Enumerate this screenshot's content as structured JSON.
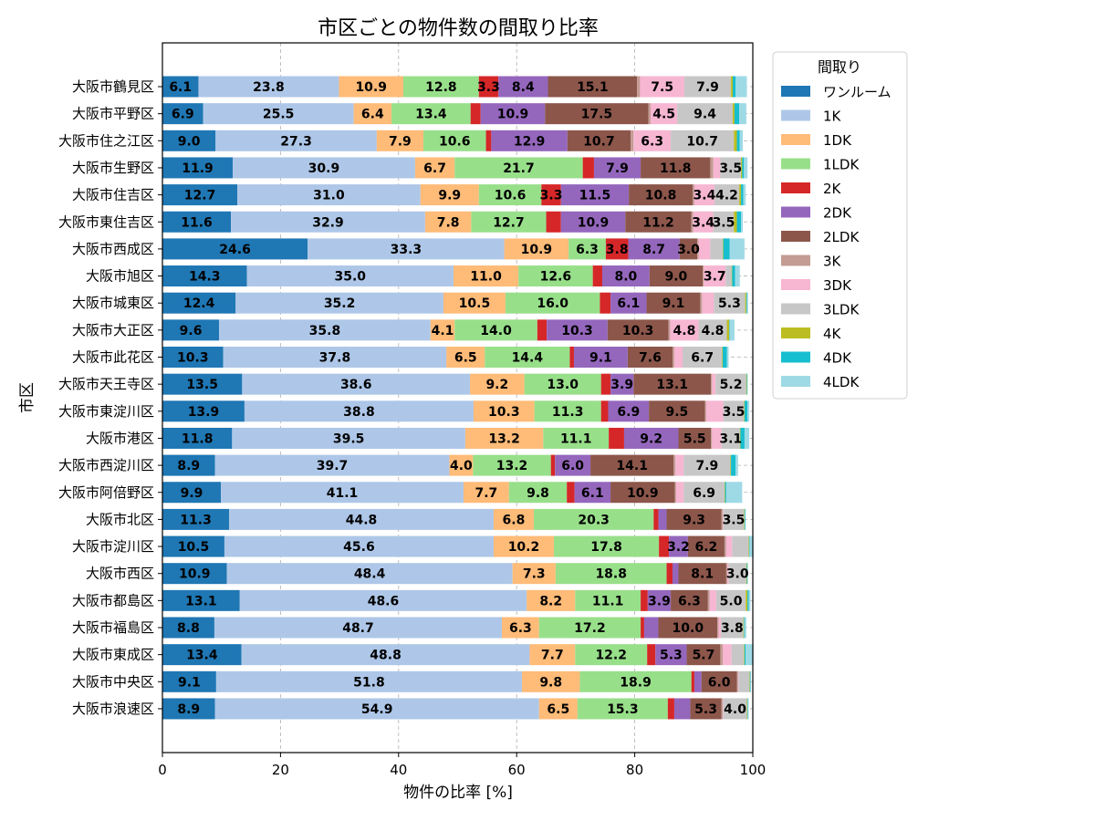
{
  "chart_data": {
    "type": "bar",
    "orientation": "horizontal",
    "stacked": true,
    "title": "市区ごとの物件数の間取り比率",
    "xlabel": "物件の比率 [%]",
    "ylabel": "市区",
    "xlim": [
      0,
      100
    ],
    "xticks": [
      0,
      20,
      40,
      60,
      80,
      100
    ],
    "grid": true,
    "legend_title": "間取り",
    "legend_position": "outside-right",
    "categories": [
      "大阪市鶴見区",
      "大阪市平野区",
      "大阪市住之江区",
      "大阪市生野区",
      "大阪市住吉区",
      "大阪市東住吉区",
      "大阪市西成区",
      "大阪市旭区",
      "大阪市城東区",
      "大阪市大正区",
      "大阪市此花区",
      "大阪市天王寺区",
      "大阪市東淀川区",
      "大阪市港区",
      "大阪市西淀川区",
      "大阪市阿倍野区",
      "大阪市北区",
      "大阪市淀川区",
      "大阪市西区",
      "大阪市都島区",
      "大阪市福島区",
      "大阪市東成区",
      "大阪市中央区",
      "大阪市浪速区"
    ],
    "series": [
      {
        "name": "ワンルーム",
        "color": "#1f77b4",
        "values": [
          6.1,
          6.9,
          9.0,
          11.9,
          12.7,
          11.6,
          24.6,
          14.3,
          12.4,
          9.6,
          10.3,
          13.5,
          13.9,
          11.8,
          8.9,
          9.9,
          11.3,
          10.5,
          10.9,
          13.1,
          8.8,
          13.4,
          9.1,
          8.9
        ]
      },
      {
        "name": "1K",
        "color": "#aec7e8",
        "values": [
          23.8,
          25.5,
          27.3,
          30.9,
          31.0,
          32.9,
          33.3,
          35.0,
          35.2,
          35.8,
          37.8,
          38.6,
          38.8,
          39.5,
          39.7,
          41.1,
          44.8,
          45.6,
          48.4,
          48.6,
          48.7,
          48.8,
          51.8,
          54.9
        ]
      },
      {
        "name": "1DK",
        "color": "#ffbb78",
        "values": [
          10.9,
          6.4,
          7.9,
          6.7,
          9.9,
          7.8,
          10.9,
          11.0,
          10.5,
          4.1,
          6.5,
          9.2,
          10.3,
          13.2,
          4.0,
          7.7,
          6.8,
          10.2,
          7.3,
          8.2,
          6.3,
          7.7,
          9.8,
          6.5
        ]
      },
      {
        "name": "1LDK",
        "color": "#98df8a",
        "values": [
          12.8,
          13.4,
          10.6,
          21.7,
          10.6,
          12.7,
          6.3,
          12.6,
          16.0,
          14.0,
          14.4,
          13.0,
          11.3,
          11.1,
          13.2,
          9.8,
          20.3,
          17.8,
          18.8,
          11.1,
          17.2,
          12.2,
          18.9,
          15.3
        ]
      },
      {
        "name": "2K",
        "color": "#d62728",
        "values": [
          3.3,
          1.7,
          0.9,
          1.9,
          3.3,
          2.5,
          3.8,
          1.6,
          1.8,
          1.6,
          0.7,
          1.6,
          1.2,
          2.6,
          0.7,
          1.3,
          0.8,
          1.7,
          1.0,
          1.2,
          0.6,
          1.4,
          0.5,
          1.1
        ]
      },
      {
        "name": "2DK",
        "color": "#9467bd",
        "values": [
          8.4,
          10.9,
          12.9,
          7.9,
          11.5,
          10.9,
          8.7,
          8.0,
          6.1,
          10.3,
          9.1,
          3.9,
          6.9,
          9.2,
          6.0,
          6.1,
          1.4,
          3.2,
          1.0,
          3.9,
          2.4,
          5.3,
          1.2,
          2.7
        ]
      },
      {
        "name": "2LDK",
        "color": "#8c564b",
        "values": [
          15.1,
          17.5,
          10.7,
          11.8,
          10.8,
          11.2,
          3.0,
          9.0,
          9.1,
          10.3,
          7.6,
          13.1,
          9.5,
          5.5,
          14.1,
          10.9,
          9.3,
          6.2,
          8.1,
          6.3,
          10.0,
          5.7,
          6.0,
          5.3
        ]
      },
      {
        "name": "3K",
        "color": "#c49c94",
        "values": [
          0.5,
          0.4,
          0.5,
          0.5,
          0.3,
          0.3,
          0.2,
          0.2,
          0.3,
          0.3,
          0.3,
          0.2,
          0.2,
          0.2,
          0.3,
          0.2,
          0.2,
          0.3,
          0.2,
          0.3,
          0.2,
          0.4,
          0.2,
          0.2
        ]
      },
      {
        "name": "3DK",
        "color": "#f7b6d2",
        "values": [
          7.5,
          4.5,
          6.3,
          1.2,
          3.4,
          3.4,
          2.0,
          3.7,
          2.0,
          4.8,
          1.4,
          0.6,
          2.9,
          1.6,
          1.4,
          1.3,
          0.1,
          1.0,
          0.2,
          1.1,
          0.4,
          1.5,
          0.1,
          0.1
        ]
      },
      {
        "name": "3LDK",
        "color": "#c7c7c7",
        "values": [
          7.9,
          9.4,
          10.7,
          3.5,
          4.2,
          3.5,
          2.1,
          1.0,
          5.3,
          4.8,
          6.7,
          5.2,
          3.5,
          3.1,
          7.9,
          6.9,
          3.5,
          2.8,
          3.0,
          5.0,
          3.8,
          2.1,
          1.8,
          4.0
        ]
      },
      {
        "name": "4K",
        "color": "#bcbd22",
        "values": [
          0.3,
          0.3,
          0.5,
          0.2,
          0.3,
          0.5,
          0.1,
          0.1,
          0.2,
          0.4,
          0.1,
          0.1,
          0.1,
          0.1,
          0.1,
          0.1,
          0.1,
          0.1,
          0.1,
          0.3,
          0.1,
          0.1,
          0.1,
          0.1
        ]
      },
      {
        "name": "4DK",
        "color": "#17becf",
        "values": [
          0.5,
          0.8,
          0.5,
          0.3,
          0.4,
          0.7,
          1.1,
          0.5,
          0.1,
          0.1,
          0.7,
          0.1,
          0.5,
          0.7,
          0.8,
          0.2,
          0.1,
          0.1,
          0.1,
          0.2,
          0.1,
          0.2,
          0.1,
          0.1
        ]
      },
      {
        "name": "4LDK",
        "color": "#9edae5",
        "values": [
          1.9,
          1.2,
          0.5,
          0.6,
          0.4,
          0.3,
          2.5,
          0.8,
          0.2,
          0.8,
          0.3,
          0.0,
          0.3,
          0.8,
          0.4,
          2.7,
          0.1,
          0.6,
          0.1,
          0.3,
          0.3,
          1.3,
          0.1,
          0.1
        ]
      }
    ]
  }
}
